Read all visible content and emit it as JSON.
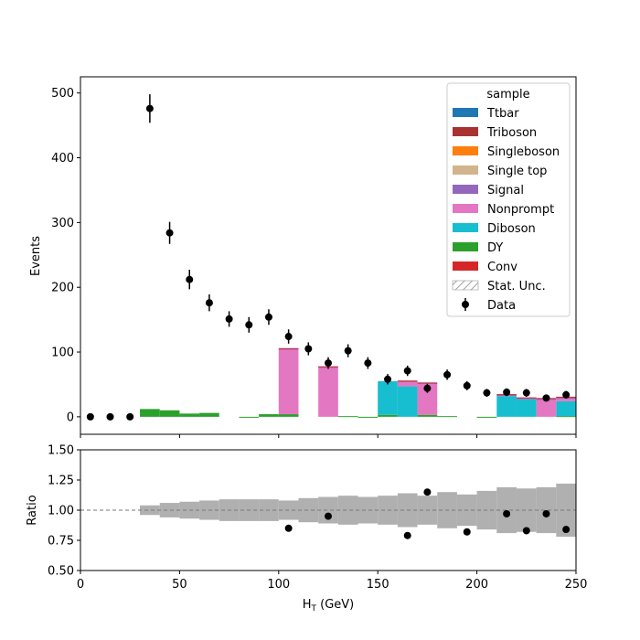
{
  "chart_data": [
    {
      "type": "bar",
      "panel": "main",
      "stacked": true,
      "xlabel": "H",
      "xlabel_sub": "T",
      "xlabel_unit": " (GeV)",
      "ylabel": "Events",
      "xlim": [
        0,
        250
      ],
      "ylim": [
        -27,
        525
      ],
      "xticks": [
        0,
        50,
        100,
        150,
        200,
        250
      ],
      "xtick_labels": [
        "0",
        "50",
        "100",
        "150",
        "200",
        "250"
      ],
      "yticks": [
        0,
        100,
        200,
        300,
        400,
        500
      ],
      "ytick_labels": [
        "0",
        "100",
        "200",
        "300",
        "400",
        "500"
      ],
      "grid": false,
      "legend": {
        "title": "sample",
        "position": "top-right",
        "entries": [
          {
            "label": "Ttbar",
            "color": "#1f77b4",
            "kind": "patch"
          },
          {
            "label": "Triboson",
            "color": "#a83232",
            "kind": "patch"
          },
          {
            "label": "Singleboson",
            "color": "#ff7f0e",
            "kind": "patch"
          },
          {
            "label": "Single top",
            "color": "#d2b48c",
            "kind": "patch"
          },
          {
            "label": "Signal",
            "color": "#9467bd",
            "kind": "patch"
          },
          {
            "label": "Nonprompt",
            "color": "#e377c2",
            "kind": "patch"
          },
          {
            "label": "Diboson",
            "color": "#17becf",
            "kind": "patch"
          },
          {
            "label": "DY",
            "color": "#2ca02c",
            "kind": "patch"
          },
          {
            "label": "Conv",
            "color": "#d62728",
            "kind": "patch"
          },
          {
            "label": "Stat. Unc.",
            "color": "#888888",
            "kind": "hatch"
          },
          {
            "label": "Data",
            "color": "#000000",
            "kind": "errorbar"
          }
        ]
      },
      "bin_edges": [
        0,
        10,
        20,
        30,
        40,
        50,
        60,
        70,
        80,
        90,
        100,
        110,
        120,
        130,
        140,
        150,
        160,
        170,
        180,
        190,
        200,
        210,
        220,
        230,
        240,
        250
      ],
      "series": [
        {
          "name": "DY",
          "color": "#2ca02c",
          "values": [
            0,
            0,
            0,
            12,
            10,
            5,
            6,
            0,
            -1,
            4,
            4,
            0,
            0,
            1,
            -1,
            3,
            0,
            3,
            1,
            0,
            -1,
            0,
            0,
            0,
            1
          ]
        },
        {
          "name": "Diboson",
          "color": "#17becf",
          "values": [
            0,
            0,
            0,
            0,
            0,
            0,
            0,
            0,
            0,
            0,
            0,
            0,
            0,
            0,
            0,
            52,
            47,
            0,
            0,
            0,
            0,
            32,
            27,
            0,
            23
          ]
        },
        {
          "name": "Nonprompt",
          "color": "#e377c2",
          "values": [
            0,
            0,
            0,
            0,
            0,
            0,
            0,
            0,
            0,
            0,
            100,
            0,
            76,
            0,
            0,
            0,
            7,
            48,
            0,
            0,
            0,
            0,
            0,
            26,
            4
          ]
        },
        {
          "name": "Signal",
          "color": "#9467bd",
          "values": [
            0,
            0,
            0,
            0,
            0,
            0,
            0,
            0,
            0,
            0,
            1,
            0,
            1,
            0,
            0,
            0,
            1,
            1,
            0,
            0,
            0,
            2,
            2,
            2,
            2
          ]
        },
        {
          "name": "Conv",
          "color": "#d62728",
          "values": [
            0,
            0,
            0,
            0,
            0,
            0,
            0,
            0,
            0,
            0,
            1,
            0,
            1,
            0,
            0,
            0,
            1,
            1,
            0,
            0,
            0,
            1,
            1,
            1,
            1
          ]
        }
      ],
      "data": {
        "name": "Data",
        "x": [
          5,
          15,
          25,
          35,
          45,
          55,
          65,
          75,
          85,
          95,
          105,
          115,
          125,
          135,
          145,
          155,
          165,
          175,
          185,
          195,
          205,
          215,
          225,
          235,
          245
        ],
        "y": [
          0,
          0,
          0,
          476,
          284,
          212,
          176,
          151,
          142,
          154,
          124,
          105,
          83,
          102,
          83,
          58,
          71,
          44,
          65,
          48,
          37,
          38,
          37,
          29,
          34
        ],
        "err": [
          0,
          0,
          0,
          22,
          17,
          15,
          13,
          12,
          12,
          12,
          11,
          10,
          9,
          10,
          9,
          8,
          8,
          7,
          8,
          7,
          6,
          6,
          6,
          5,
          6
        ]
      }
    },
    {
      "type": "scatter",
      "panel": "ratio",
      "ylabel": "Ratio",
      "xlim": [
        0,
        250
      ],
      "ylim": [
        0.5,
        1.5
      ],
      "xticks": [
        0,
        50,
        100,
        150,
        200,
        250
      ],
      "yticks": [
        0.5,
        0.75,
        1.0,
        1.25,
        1.5
      ],
      "ytick_labels": [
        "0.50",
        "0.75",
        "1.00",
        "1.25",
        "1.50"
      ],
      "reference_line": 1.0,
      "uncertainty_band": {
        "bin_edges": [
          30,
          40,
          50,
          60,
          70,
          80,
          90,
          100,
          110,
          120,
          130,
          140,
          150,
          160,
          170,
          180,
          190,
          200,
          210,
          220,
          230,
          240,
          250
        ],
        "half_widths": [
          0.04,
          0.06,
          0.07,
          0.08,
          0.09,
          0.09,
          0.09,
          0.08,
          0.1,
          0.11,
          0.12,
          0.11,
          0.12,
          0.14,
          0.12,
          0.15,
          0.13,
          0.16,
          0.19,
          0.18,
          0.19,
          0.22,
          0.2
        ]
      },
      "points": {
        "x": [
          105,
          125,
          165,
          175,
          195,
          215,
          225,
          235,
          245
        ],
        "y": [
          0.85,
          0.95,
          0.79,
          1.15,
          0.82,
          0.97,
          0.83,
          0.97,
          0.84
        ]
      }
    }
  ]
}
